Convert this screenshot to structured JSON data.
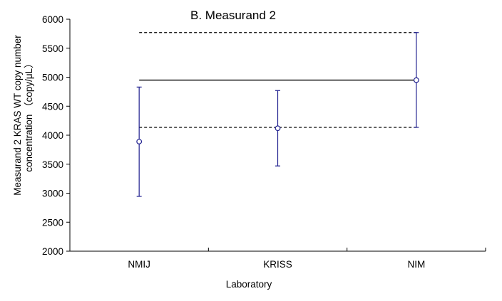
{
  "chart_data": {
    "type": "scatter",
    "title": "B. Measurand 2",
    "xlabel": "Laboratory",
    "ylabel_lines": [
      "Measurand 2 KRAS WT copy number",
      "concentration （copy/μL）"
    ],
    "categories": [
      "NMIJ",
      "KRISS",
      "NIM"
    ],
    "ylim": [
      2000,
      6000
    ],
    "yticks": [
      2000,
      2500,
      3000,
      3500,
      4000,
      4500,
      5000,
      5500,
      6000
    ],
    "grid": false,
    "points": [
      {
        "category": "NMIJ",
        "value": 3890,
        "lower": 2945,
        "upper": 4830
      },
      {
        "category": "KRISS",
        "value": 4120,
        "lower": 3470,
        "upper": 4770
      },
      {
        "category": "NIM",
        "value": 4950,
        "lower": 4135,
        "upper": 5770
      }
    ],
    "reference": {
      "value": 4950,
      "lower": 4135,
      "upper": 5770,
      "span": [
        "KRISS-left",
        "NIM"
      ]
    },
    "colors": {
      "points": "#1f1f8f",
      "reference": "#000000",
      "axis": "#000000"
    }
  }
}
